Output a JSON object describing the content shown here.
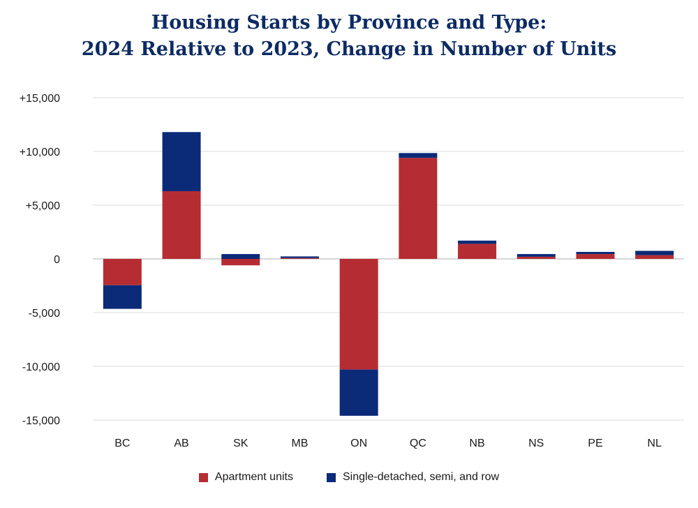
{
  "chart_data": {
    "type": "bar",
    "stacked": true,
    "title_line1": "Housing Starts by Province and Type:",
    "title_line2": "2024 Relative to 2023, Change in Number of Units",
    "categories": [
      "BC",
      "AB",
      "SK",
      "MB",
      "ON",
      "QC",
      "NB",
      "NS",
      "PE",
      "NL"
    ],
    "series": [
      {
        "name": "Apartment units",
        "color": "#b52d33",
        "values": [
          -2450,
          6300,
          -600,
          80,
          -10300,
          9400,
          1400,
          200,
          450,
          350
        ]
      },
      {
        "name": "Single-detached, semi, and row",
        "color": "#0b2a78",
        "values": [
          -2200,
          5500,
          450,
          150,
          -4300,
          450,
          300,
          250,
          200,
          400
        ]
      }
    ],
    "ylim": [
      -15000,
      15000
    ],
    "yticks": [
      15000,
      10000,
      5000,
      0,
      -5000,
      -10000,
      -15000
    ],
    "ytick_labels": [
      "+15,000",
      "+10,000",
      "+5,000",
      "0",
      "-5,000",
      "-10,000",
      "-15,000"
    ],
    "grid": true,
    "legend_position": "bottom"
  }
}
